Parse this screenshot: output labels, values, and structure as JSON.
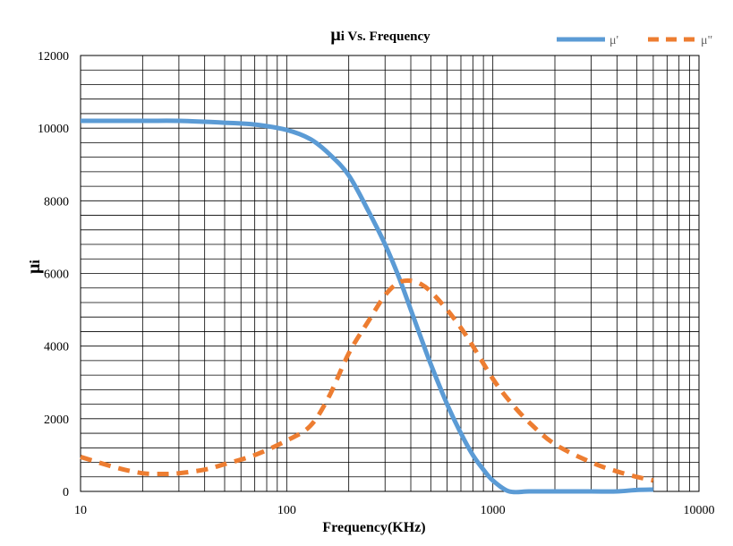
{
  "chart_data": {
    "type": "line",
    "title_symbol": "μ",
    "title_rest": "i Vs. Frequency",
    "xlabel": "Frequency(KHz)",
    "ylabel_symbol": "μ",
    "ylabel_rest": "i",
    "x_scale": "log",
    "xlim": [
      10,
      10000
    ],
    "ylim": [
      0,
      12000
    ],
    "x_ticks": [
      "10",
      "100",
      "1000",
      "10000"
    ],
    "y_ticks": [
      "0",
      "2000",
      "4000",
      "6000",
      "8000",
      "10000",
      "12000"
    ],
    "grid": true,
    "legend_position": "top-right",
    "series": [
      {
        "name": "μ'",
        "color": "#5B9BD5",
        "dash": "solid",
        "x": [
          10,
          20,
          30,
          50,
          70,
          100,
          130,
          160,
          200,
          250,
          300,
          350,
          400,
          450,
          500,
          600,
          700,
          800,
          900,
          1000,
          1200,
          1500,
          2000,
          3000,
          4000,
          5000,
          6000
        ],
        "y": [
          10200,
          10200,
          10200,
          10150,
          10100,
          9950,
          9700,
          9300,
          8700,
          7700,
          6800,
          5900,
          5000,
          4200,
          3500,
          2400,
          1600,
          1000,
          600,
          300,
          0,
          0,
          0,
          0,
          0,
          40,
          50
        ]
      },
      {
        "name": "μ\"",
        "color": "#ED7D31",
        "dash": "dashed",
        "x": [
          10,
          15,
          20,
          25,
          30,
          40,
          50,
          70,
          100,
          130,
          160,
          200,
          250,
          300,
          350,
          400,
          450,
          500,
          600,
          700,
          800,
          1000,
          1200,
          1500,
          2000,
          3000,
          4000,
          5000,
          6000
        ],
        "y": [
          950,
          650,
          500,
          480,
          500,
          600,
          750,
          1000,
          1400,
          1800,
          2600,
          3800,
          4700,
          5400,
          5750,
          5800,
          5700,
          5500,
          5000,
          4500,
          4000,
          3100,
          2500,
          1900,
          1300,
          800,
          550,
          400,
          300
        ]
      }
    ]
  }
}
